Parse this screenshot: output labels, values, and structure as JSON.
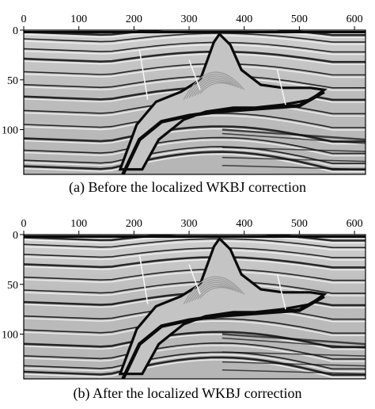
{
  "panels": [
    {
      "id": "a",
      "caption": "(a)  Before the localized WKBJ correction",
      "x_ticks": [
        "0",
        "100",
        "200",
        "300",
        "400",
        "500",
        "600"
      ],
      "y_ticks": [
        "0",
        "50",
        "100"
      ]
    },
    {
      "id": "b",
      "caption": "(b)  After the localized WKBJ correction",
      "x_ticks": [
        "0",
        "100",
        "200",
        "300",
        "400",
        "500",
        "600"
      ],
      "y_ticks": [
        "0",
        "50",
        "100"
      ]
    }
  ],
  "axes": {
    "x_range": [
      0,
      620
    ],
    "y_range": [
      0,
      145
    ],
    "x_values": [
      0,
      100,
      200,
      300,
      400,
      500,
      600
    ],
    "y_values": [
      0,
      50,
      100
    ]
  },
  "colors": {
    "background": "#ffffff",
    "seismic_gray": "#b8b8b8",
    "reflector_dark": "#0a0a0a",
    "reflector_light": "#f2f2f2"
  }
}
